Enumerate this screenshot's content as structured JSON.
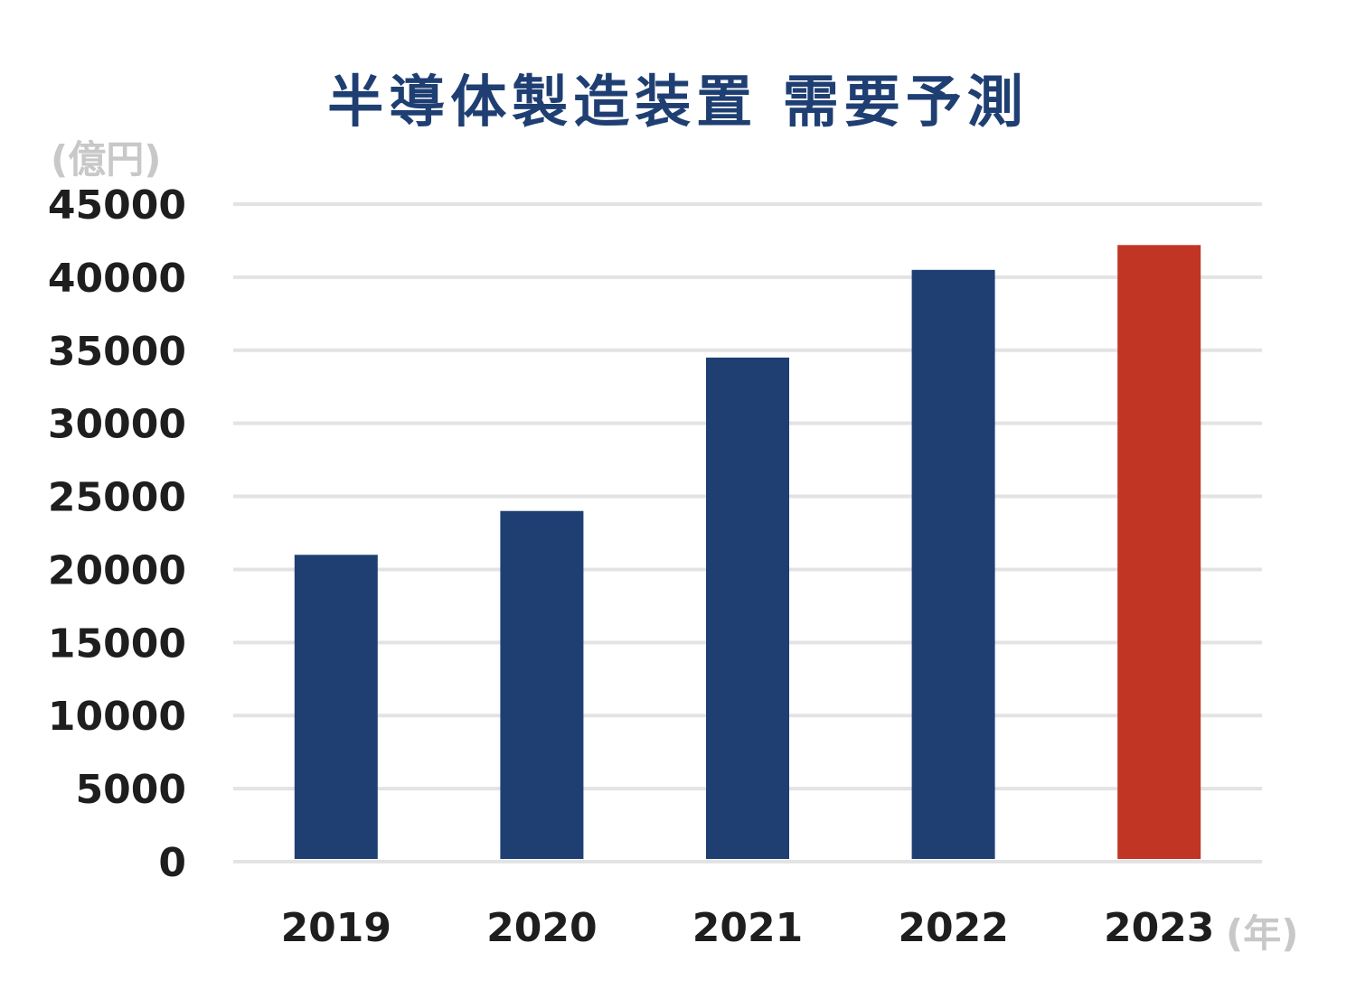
{
  "chart_data": {
    "type": "bar",
    "title": "半導体製造装置 需要予測",
    "ylabel": "(億円)",
    "xlabel": "(年)",
    "categories": [
      "2019",
      "2020",
      "2021",
      "2022",
      "2023"
    ],
    "values": [
      21000,
      24000,
      34500,
      40500,
      42200
    ],
    "ylim": [
      0,
      45000
    ],
    "yticks": [
      0,
      5000,
      10000,
      15000,
      20000,
      25000,
      30000,
      35000,
      40000,
      45000
    ],
    "grid": true,
    "bar_colors": [
      "#1f3f73",
      "#1f3f73",
      "#1f3f73",
      "#1f3f73",
      "#c13524"
    ]
  },
  "colors": {
    "title": "#1f3f73",
    "unit_label": "#c8c8c8",
    "tick_label": "#1e1e1e",
    "grid": "#e3e3e3"
  }
}
